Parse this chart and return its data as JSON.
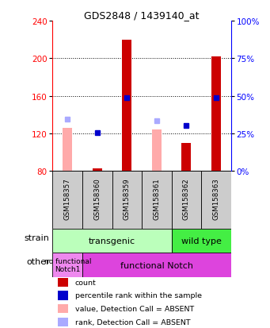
{
  "title": "GDS2848 / 1439140_at",
  "samples": [
    "GSM158357",
    "GSM158360",
    "GSM158359",
    "GSM158361",
    "GSM158362",
    "GSM158363"
  ],
  "ylim_min": 80,
  "ylim_max": 240,
  "yticks_left": [
    80,
    120,
    160,
    200,
    240
  ],
  "yticks_right": [
    0,
    25,
    50,
    75,
    100
  ],
  "count_values": [
    null,
    83,
    220,
    null,
    110,
    202
  ],
  "pct_rank_values": [
    null,
    121,
    158,
    null,
    128,
    158
  ],
  "absent_value_values": [
    126,
    null,
    null,
    124,
    null,
    null
  ],
  "absent_rank_values": [
    135,
    null,
    null,
    133,
    null,
    null
  ],
  "count_color": "#cc0000",
  "pct_rank_color": "#0000cc",
  "absent_value_color": "#ffaaaa",
  "absent_rank_color": "#aaaaff",
  "bar_width": 0.32,
  "transgenic_color": "#bbffbb",
  "wildtype_color": "#44ee44",
  "nofunc_color": "#ee88ee",
  "func_color": "#dd44dd",
  "sample_box_color": "#cccccc",
  "legend": [
    {
      "label": "count",
      "color": "#cc0000"
    },
    {
      "label": "percentile rank within the sample",
      "color": "#0000cc"
    },
    {
      "label": "value, Detection Call = ABSENT",
      "color": "#ffaaaa"
    },
    {
      "label": "rank, Detection Call = ABSENT",
      "color": "#aaaaff"
    }
  ]
}
